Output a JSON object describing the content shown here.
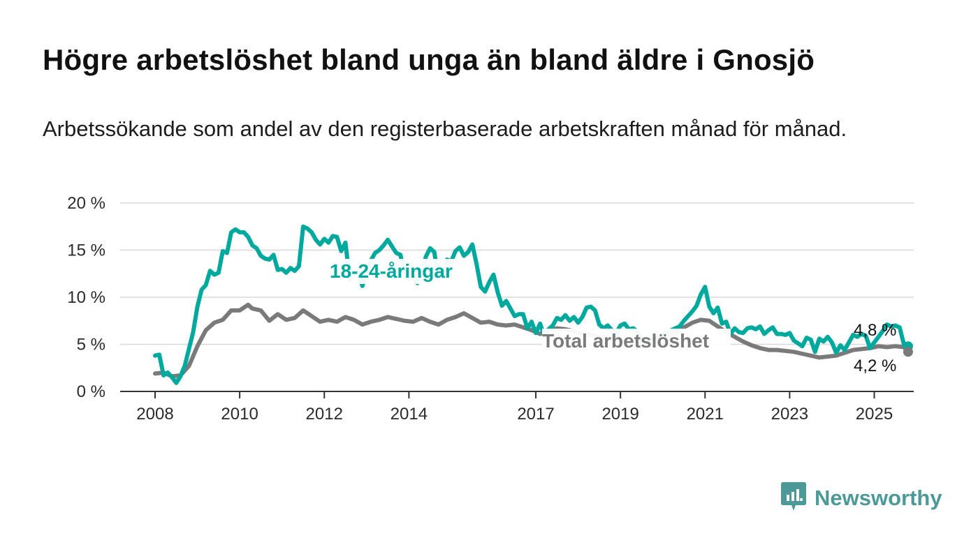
{
  "header": {
    "title": "Högre arbetslöshet bland unga än bland äldre i Gnosjö",
    "subtitle": "Arbetssökande som andel av den registerbaserade arbetskraften månad för månad."
  },
  "brand": {
    "name": "Newsworthy"
  },
  "colors": {
    "accent": "#00A99D",
    "total": "#7A7A7A",
    "grid": "#D8D8D8",
    "axis": "#333333",
    "brand": "#4C9A98"
  },
  "chart_data": {
    "type": "line",
    "xlabel": "",
    "ylabel": "",
    "xlim": [
      2008,
      2025.9
    ],
    "ylim": [
      0,
      20
    ],
    "grid": true,
    "x_ticks": [
      2008,
      2010,
      2012,
      2014,
      2017,
      2019,
      2021,
      2023,
      2025
    ],
    "x_tick_labels": [
      "2008",
      "2010",
      "2012",
      "2014",
      "2017",
      "2019",
      "2021",
      "2023",
      "2025"
    ],
    "y_ticks": [
      0,
      5,
      10,
      15,
      20
    ],
    "y_tick_labels": [
      "0 %",
      "5 %",
      "10 %",
      "15 %",
      "20 %"
    ],
    "series": [
      {
        "name": "18-24-åringar",
        "color": "#00A99D",
        "end_label": "4,8 %",
        "points": [
          [
            2008.0,
            3.8
          ],
          [
            2008.1,
            3.9
          ],
          [
            2008.2,
            1.7
          ],
          [
            2008.3,
            2.0
          ],
          [
            2008.4,
            1.5
          ],
          [
            2008.5,
            0.9
          ],
          [
            2008.6,
            1.6
          ],
          [
            2008.7,
            2.7
          ],
          [
            2008.8,
            4.5
          ],
          [
            2008.9,
            6.3
          ],
          [
            2009.0,
            9.0
          ],
          [
            2009.1,
            10.8
          ],
          [
            2009.2,
            11.3
          ],
          [
            2009.3,
            12.8
          ],
          [
            2009.4,
            12.4
          ],
          [
            2009.5,
            12.6
          ],
          [
            2009.6,
            14.9
          ],
          [
            2009.7,
            14.7
          ],
          [
            2009.8,
            16.9
          ],
          [
            2009.9,
            17.2
          ],
          [
            2010.0,
            16.9
          ],
          [
            2010.1,
            16.9
          ],
          [
            2010.2,
            16.4
          ],
          [
            2010.3,
            15.5
          ],
          [
            2010.4,
            15.2
          ],
          [
            2010.5,
            14.4
          ],
          [
            2010.6,
            14.1
          ],
          [
            2010.7,
            14.0
          ],
          [
            2010.8,
            14.5
          ],
          [
            2010.9,
            12.9
          ],
          [
            2011.0,
            13.0
          ],
          [
            2011.1,
            12.6
          ],
          [
            2011.2,
            13.1
          ],
          [
            2011.3,
            12.8
          ],
          [
            2011.4,
            13.3
          ],
          [
            2011.5,
            17.5
          ],
          [
            2011.6,
            17.3
          ],
          [
            2011.7,
            16.9
          ],
          [
            2011.8,
            16.1
          ],
          [
            2011.9,
            15.6
          ],
          [
            2012.0,
            16.2
          ],
          [
            2012.1,
            15.8
          ],
          [
            2012.2,
            16.5
          ],
          [
            2012.3,
            16.4
          ],
          [
            2012.4,
            14.9
          ],
          [
            2012.5,
            15.8
          ],
          [
            2012.6,
            11.8
          ],
          [
            2012.7,
            12.5
          ],
          [
            2012.8,
            12.7
          ],
          [
            2012.9,
            11.2
          ],
          [
            2013.0,
            12.6
          ],
          [
            2013.1,
            13.9
          ],
          [
            2013.2,
            14.7
          ],
          [
            2013.3,
            15.0
          ],
          [
            2013.4,
            15.5
          ],
          [
            2013.5,
            16.1
          ],
          [
            2013.6,
            15.4
          ],
          [
            2013.7,
            14.7
          ],
          [
            2013.8,
            14.5
          ],
          [
            2013.9,
            12.4
          ],
          [
            2014.0,
            11.9
          ],
          [
            2014.1,
            12.2
          ],
          [
            2014.2,
            11.5
          ],
          [
            2014.3,
            12.1
          ],
          [
            2014.4,
            14.3
          ],
          [
            2014.5,
            15.2
          ],
          [
            2014.6,
            14.8
          ],
          [
            2014.7,
            11.9
          ],
          [
            2014.8,
            12.1
          ],
          [
            2014.9,
            14.0
          ],
          [
            2015.0,
            13.8
          ],
          [
            2015.1,
            14.9
          ],
          [
            2015.2,
            15.3
          ],
          [
            2015.3,
            14.4
          ],
          [
            2015.4,
            14.8
          ],
          [
            2015.5,
            15.6
          ],
          [
            2015.6,
            13.5
          ],
          [
            2015.7,
            11.1
          ],
          [
            2015.8,
            10.6
          ],
          [
            2015.9,
            11.6
          ],
          [
            2016.0,
            12.4
          ],
          [
            2016.1,
            10.5
          ],
          [
            2016.2,
            9.1
          ],
          [
            2016.3,
            9.6
          ],
          [
            2016.4,
            8.8
          ],
          [
            2016.5,
            8.0
          ],
          [
            2016.6,
            8.2
          ],
          [
            2016.7,
            8.2
          ],
          [
            2016.8,
            6.7
          ],
          [
            2016.9,
            7.4
          ],
          [
            2017.0,
            6.2
          ],
          [
            2017.1,
            7.2
          ],
          [
            2017.2,
            5.9
          ],
          [
            2017.3,
            6.6
          ],
          [
            2017.4,
            7.0
          ],
          [
            2017.5,
            7.8
          ],
          [
            2017.6,
            7.6
          ],
          [
            2017.7,
            8.1
          ],
          [
            2017.8,
            7.5
          ],
          [
            2017.9,
            7.9
          ],
          [
            2018.0,
            7.3
          ],
          [
            2018.1,
            7.9
          ],
          [
            2018.2,
            8.9
          ],
          [
            2018.3,
            9.0
          ],
          [
            2018.4,
            8.6
          ],
          [
            2018.5,
            7.1
          ],
          [
            2018.6,
            6.7
          ],
          [
            2018.7,
            7.0
          ],
          [
            2018.8,
            6.5
          ],
          [
            2018.9,
            6.2
          ],
          [
            2019.0,
            7.0
          ],
          [
            2019.1,
            7.2
          ],
          [
            2019.2,
            6.6
          ],
          [
            2019.3,
            6.7
          ],
          [
            2019.4,
            6.4
          ],
          [
            2019.5,
            5.7
          ],
          [
            2019.6,
            5.4
          ],
          [
            2019.7,
            5.3
          ],
          [
            2019.8,
            5.5
          ],
          [
            2019.9,
            5.9
          ],
          [
            2020.0,
            6.0
          ],
          [
            2020.1,
            6.2
          ],
          [
            2020.2,
            6.5
          ],
          [
            2020.3,
            6.7
          ],
          [
            2020.4,
            6.9
          ],
          [
            2020.5,
            7.5
          ],
          [
            2020.6,
            8.0
          ],
          [
            2020.7,
            8.5
          ],
          [
            2020.8,
            9.1
          ],
          [
            2020.9,
            10.3
          ],
          [
            2021.0,
            11.1
          ],
          [
            2021.1,
            9.0
          ],
          [
            2021.2,
            8.3
          ],
          [
            2021.3,
            8.9
          ],
          [
            2021.4,
            7.2
          ],
          [
            2021.5,
            7.4
          ],
          [
            2021.6,
            6.1
          ],
          [
            2021.7,
            6.7
          ],
          [
            2021.8,
            6.3
          ],
          [
            2021.9,
            6.2
          ],
          [
            2022.0,
            6.7
          ],
          [
            2022.1,
            6.8
          ],
          [
            2022.2,
            6.6
          ],
          [
            2022.3,
            6.9
          ],
          [
            2022.4,
            6.1
          ],
          [
            2022.5,
            6.5
          ],
          [
            2022.6,
            6.8
          ],
          [
            2022.7,
            6.1
          ],
          [
            2022.8,
            6.1
          ],
          [
            2022.9,
            6.0
          ],
          [
            2023.0,
            6.2
          ],
          [
            2023.1,
            5.4
          ],
          [
            2023.2,
            5.1
          ],
          [
            2023.3,
            4.8
          ],
          [
            2023.4,
            5.7
          ],
          [
            2023.5,
            5.5
          ],
          [
            2023.6,
            4.2
          ],
          [
            2023.7,
            5.6
          ],
          [
            2023.8,
            5.3
          ],
          [
            2023.9,
            5.8
          ],
          [
            2024.0,
            5.2
          ],
          [
            2024.1,
            4.1
          ],
          [
            2024.2,
            4.9
          ],
          [
            2024.3,
            4.4
          ],
          [
            2024.4,
            5.2
          ],
          [
            2024.5,
            6.0
          ],
          [
            2024.6,
            5.8
          ],
          [
            2024.7,
            6.1
          ],
          [
            2024.8,
            5.9
          ],
          [
            2024.9,
            4.6
          ],
          [
            2025.0,
            5.2
          ],
          [
            2025.1,
            5.8
          ],
          [
            2025.2,
            6.4
          ],
          [
            2025.3,
            7.1
          ],
          [
            2025.4,
            6.9
          ],
          [
            2025.5,
            7.0
          ],
          [
            2025.6,
            6.8
          ],
          [
            2025.7,
            5.0
          ],
          [
            2025.8,
            4.8
          ]
        ]
      },
      {
        "name": "Total arbetslöshet",
        "color": "#7A7A7A",
        "end_label": "4,2 %",
        "points": [
          [
            2008.0,
            1.9
          ],
          [
            2008.2,
            2.0
          ],
          [
            2008.4,
            1.6
          ],
          [
            2008.6,
            1.7
          ],
          [
            2008.8,
            2.7
          ],
          [
            2009.0,
            4.8
          ],
          [
            2009.2,
            6.5
          ],
          [
            2009.4,
            7.3
          ],
          [
            2009.6,
            7.6
          ],
          [
            2009.8,
            8.6
          ],
          [
            2010.0,
            8.6
          ],
          [
            2010.2,
            9.2
          ],
          [
            2010.3,
            8.8
          ],
          [
            2010.5,
            8.6
          ],
          [
            2010.7,
            7.5
          ],
          [
            2010.9,
            8.2
          ],
          [
            2011.1,
            7.6
          ],
          [
            2011.3,
            7.8
          ],
          [
            2011.5,
            8.6
          ],
          [
            2011.7,
            8.0
          ],
          [
            2011.9,
            7.4
          ],
          [
            2012.1,
            7.6
          ],
          [
            2012.3,
            7.4
          ],
          [
            2012.5,
            7.9
          ],
          [
            2012.7,
            7.6
          ],
          [
            2012.9,
            7.1
          ],
          [
            2013.1,
            7.4
          ],
          [
            2013.3,
            7.6
          ],
          [
            2013.5,
            7.9
          ],
          [
            2013.7,
            7.7
          ],
          [
            2013.9,
            7.5
          ],
          [
            2014.1,
            7.4
          ],
          [
            2014.3,
            7.8
          ],
          [
            2014.5,
            7.4
          ],
          [
            2014.7,
            7.1
          ],
          [
            2014.9,
            7.6
          ],
          [
            2015.1,
            7.9
          ],
          [
            2015.3,
            8.3
          ],
          [
            2015.5,
            7.8
          ],
          [
            2015.7,
            7.3
          ],
          [
            2015.9,
            7.4
          ],
          [
            2016.1,
            7.1
          ],
          [
            2016.3,
            7.0
          ],
          [
            2016.5,
            7.1
          ],
          [
            2016.7,
            6.8
          ],
          [
            2016.9,
            6.5
          ],
          [
            2017.1,
            6.1
          ],
          [
            2017.3,
            6.5
          ],
          [
            2017.5,
            6.7
          ],
          [
            2017.7,
            6.6
          ],
          [
            2017.9,
            6.4
          ],
          [
            2018.1,
            6.1
          ],
          [
            2018.3,
            6.0
          ],
          [
            2018.5,
            5.8
          ],
          [
            2018.7,
            5.7
          ],
          [
            2018.9,
            5.5
          ],
          [
            2019.1,
            5.4
          ],
          [
            2019.3,
            5.5
          ],
          [
            2019.5,
            5.3
          ],
          [
            2019.7,
            5.4
          ],
          [
            2019.9,
            5.7
          ],
          [
            2020.1,
            5.9
          ],
          [
            2020.3,
            6.2
          ],
          [
            2020.5,
            6.8
          ],
          [
            2020.7,
            7.3
          ],
          [
            2020.9,
            7.6
          ],
          [
            2021.1,
            7.5
          ],
          [
            2021.3,
            6.9
          ],
          [
            2021.5,
            6.3
          ],
          [
            2021.7,
            5.8
          ],
          [
            2021.9,
            5.3
          ],
          [
            2022.1,
            4.9
          ],
          [
            2022.3,
            4.6
          ],
          [
            2022.5,
            4.4
          ],
          [
            2022.7,
            4.4
          ],
          [
            2022.9,
            4.3
          ],
          [
            2023.1,
            4.2
          ],
          [
            2023.3,
            4.0
          ],
          [
            2023.5,
            3.8
          ],
          [
            2023.7,
            3.6
          ],
          [
            2023.9,
            3.7
          ],
          [
            2024.1,
            3.8
          ],
          [
            2024.3,
            4.1
          ],
          [
            2024.5,
            4.4
          ],
          [
            2024.7,
            4.5
          ],
          [
            2024.9,
            4.6
          ],
          [
            2025.1,
            4.8
          ],
          [
            2025.3,
            4.7
          ],
          [
            2025.5,
            4.8
          ],
          [
            2025.7,
            4.7
          ],
          [
            2025.8,
            4.2
          ]
        ]
      }
    ]
  }
}
